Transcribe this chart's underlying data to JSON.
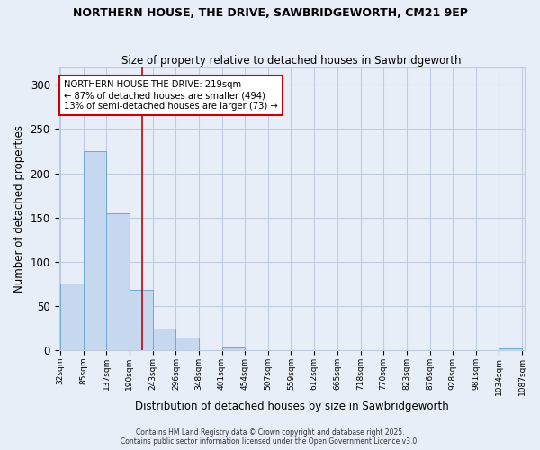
{
  "title1": "NORTHERN HOUSE, THE DRIVE, SAWBRIDGEWORTH, CM21 9EP",
  "title2": "Size of property relative to detached houses in Sawbridgeworth",
  "xlabel": "Distribution of detached houses by size in Sawbridgeworth",
  "ylabel": "Number of detached properties",
  "bin_edges": [
    32,
    85,
    137,
    190,
    243,
    296,
    348,
    401,
    454,
    507,
    559,
    612,
    665,
    718,
    770,
    823,
    876,
    928,
    981,
    1034,
    1087
  ],
  "bar_heights": [
    75,
    225,
    155,
    68,
    25,
    14,
    0,
    3,
    0,
    0,
    0,
    0,
    0,
    0,
    0,
    0,
    0,
    0,
    0,
    2
  ],
  "bar_color": "#c5d8f0",
  "bar_edge_color": "#6aaad4",
  "red_line_x": 219,
  "ylim": [
    0,
    320
  ],
  "yticks": [
    0,
    50,
    100,
    150,
    200,
    250,
    300
  ],
  "annotation_text": "NORTHERN HOUSE THE DRIVE: 219sqm\n← 87% of detached houses are smaller (494)\n13% of semi-detached houses are larger (73) →",
  "annotation_box_color": "#ffffff",
  "annotation_box_edge": "#cc0000",
  "footer1": "Contains HM Land Registry data © Crown copyright and database right 2025.",
  "footer2": "Contains public sector information licensed under the Open Government Licence v3.0.",
  "background_color": "#e8eef8",
  "grid_color": "#c0cce0"
}
